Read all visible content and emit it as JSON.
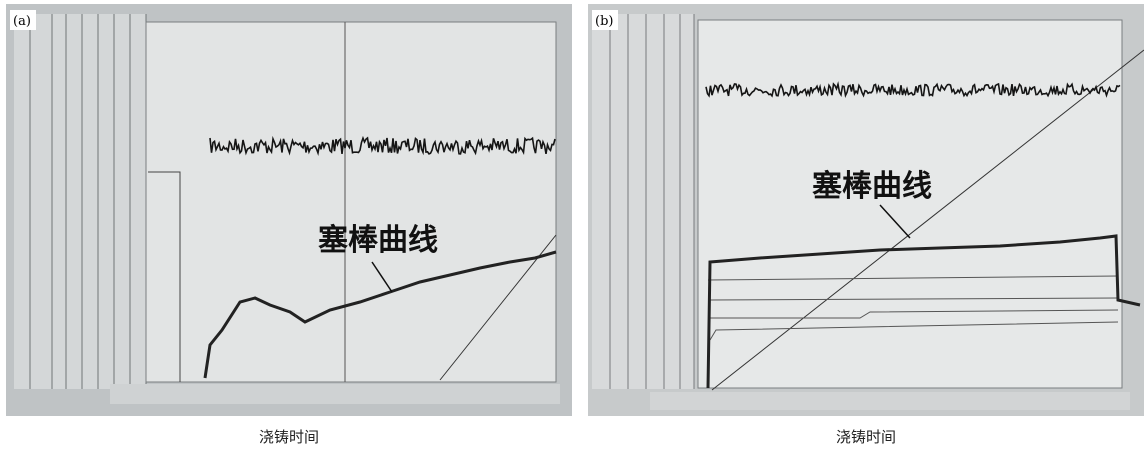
{
  "panels": [
    {
      "label": "(a)",
      "annotation": "塞棒曲线",
      "caption": "浇铸时间"
    },
    {
      "label": "(b)",
      "annotation": "塞棒曲线",
      "caption": "浇铸时间"
    }
  ]
}
